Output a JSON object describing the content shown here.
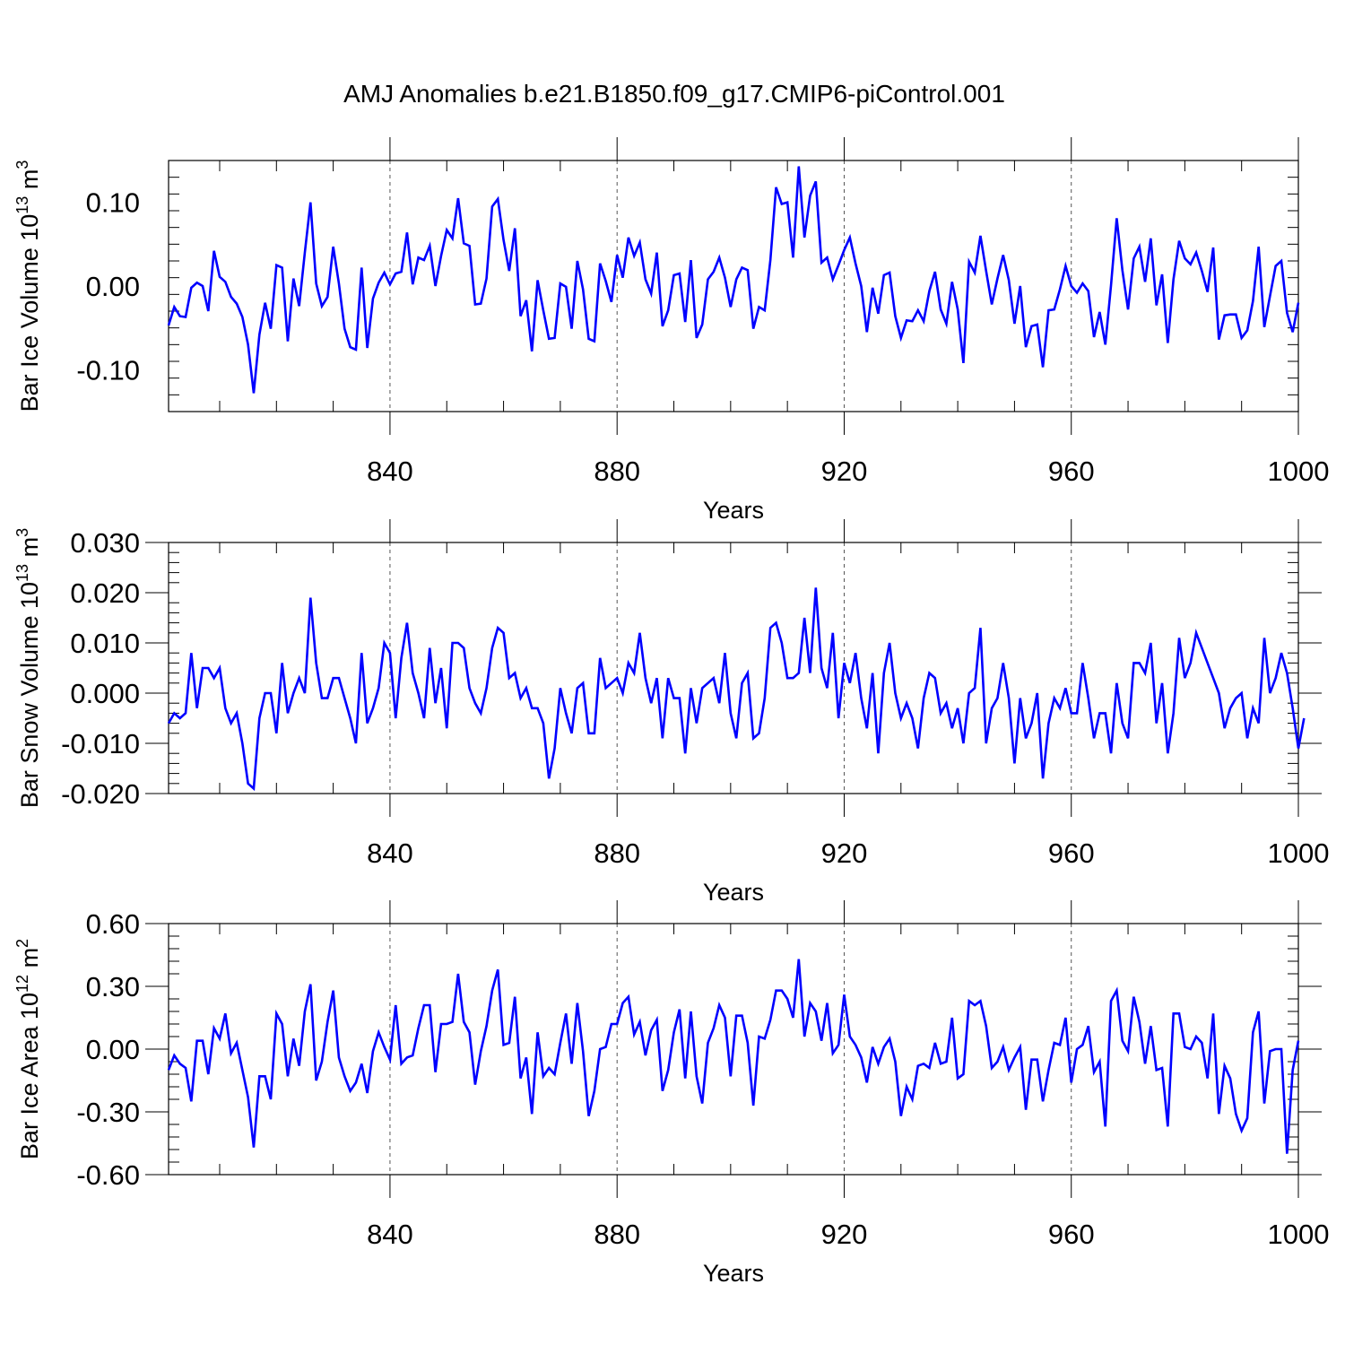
{
  "title": "AMJ Anomalies b.e21.B1850.f09_g17.CMIP6-piControl.001",
  "colors": {
    "line": "#0000ff",
    "axis": "#000000",
    "grid": "#555555"
  },
  "chart_data": [
    {
      "type": "line",
      "ylabel_main": "Bar Ice Volume 10",
      "ylabel_exp": "13",
      "ylabel_unit": " m",
      "ylabel_unit_exp": "3",
      "xlabel": "Years",
      "xlim": [
        801,
        1000
      ],
      "ylim": [
        -0.15,
        0.15
      ],
      "yticks": [
        -0.1,
        0.0,
        0.1
      ],
      "ytick_labels": [
        "-0.10",
        "0.00",
        "0.10"
      ],
      "xticks": [
        840,
        880,
        920,
        960,
        1000
      ],
      "xtick_labels": [
        "840",
        "880",
        "920",
        "960",
        "1000"
      ],
      "series": [
        {
          "name": "Bar Ice Volume",
          "start_year": 801,
          "values": [
            -0.047,
            -0.025,
            -0.036,
            -0.037,
            -0.002,
            0.004,
            0.0,
            -0.03,
            0.042,
            0.011,
            0.005,
            -0.013,
            -0.021,
            -0.037,
            -0.07,
            -0.128,
            -0.058,
            -0.02,
            -0.051,
            0.025,
            0.022,
            -0.066,
            0.009,
            -0.024,
            0.04,
            0.1,
            0.003,
            -0.024,
            -0.013,
            0.047,
            0.003,
            -0.051,
            -0.073,
            -0.076,
            0.022,
            -0.074,
            -0.015,
            0.004,
            0.016,
            0.002,
            0.015,
            0.017,
            0.064,
            0.002,
            0.034,
            0.031,
            0.048,
            0.0,
            0.036,
            0.067,
            0.057,
            0.105,
            0.051,
            0.048,
            -0.022,
            -0.021,
            0.009,
            0.095,
            0.104,
            0.055,
            0.018,
            0.069,
            -0.036,
            -0.017,
            -0.078,
            0.007,
            -0.029,
            -0.063,
            -0.062,
            0.003,
            -0.001,
            -0.051,
            0.03,
            -0.004,
            -0.063,
            -0.066,
            0.027,
            0.006,
            -0.019,
            0.037,
            0.01,
            0.058,
            0.036,
            0.052,
            0.008,
            -0.009,
            0.04,
            -0.048,
            -0.029,
            0.013,
            0.015,
            -0.043,
            0.031,
            -0.062,
            -0.046,
            0.008,
            0.017,
            0.034,
            0.01,
            -0.025,
            0.008,
            0.022,
            0.019,
            -0.051,
            -0.025,
            -0.029,
            0.031,
            0.118,
            0.098,
            0.1,
            0.034,
            0.143,
            0.058,
            0.108,
            0.125,
            0.028,
            0.034,
            0.008,
            0.025,
            0.043,
            0.058,
            0.027,
            0.0,
            -0.055,
            -0.002,
            -0.033,
            0.013,
            0.016,
            -0.036,
            -0.062,
            -0.041,
            -0.042,
            -0.029,
            -0.042,
            -0.006,
            0.017,
            -0.028,
            -0.045,
            0.005,
            -0.028,
            -0.092,
            0.029,
            0.016,
            0.06,
            0.018,
            -0.022,
            0.009,
            0.037,
            0.007,
            -0.045,
            0.0,
            -0.073,
            -0.048,
            -0.046,
            -0.097,
            -0.029,
            -0.028,
            -0.004,
            0.024,
            0.0,
            -0.008,
            0.003,
            -0.006,
            -0.061,
            -0.031,
            -0.07,
            0.001,
            0.081,
            0.019,
            -0.028,
            0.033,
            0.047,
            0.005,
            0.057,
            -0.023,
            0.014,
            -0.068,
            0.008,
            0.054,
            0.033,
            0.026,
            0.04,
            0.018,
            -0.007,
            0.046,
            -0.064,
            -0.035,
            -0.034,
            -0.034,
            -0.062,
            -0.053,
            -0.018,
            0.047,
            -0.049,
            -0.012,
            0.024,
            0.03,
            -0.032,
            -0.055,
            -0.02
          ]
        }
      ]
    },
    {
      "type": "line",
      "ylabel_main": "Bar Snow Volume 10",
      "ylabel_exp": "13",
      "ylabel_unit": " m",
      "ylabel_unit_exp": "3",
      "xlabel": "Years",
      "xlim": [
        801,
        1000
      ],
      "ylim": [
        -0.02,
        0.03
      ],
      "yticks": [
        -0.02,
        -0.01,
        0.0,
        0.01,
        0.02,
        0.03
      ],
      "ytick_labels": [
        "-0.020",
        "-0.010",
        "0.000",
        "0.010",
        "0.020",
        "0.030"
      ],
      "xticks": [
        840,
        880,
        920,
        960,
        1000
      ],
      "xtick_labels": [
        "840",
        "880",
        "920",
        "960",
        "1000"
      ],
      "series": [
        {
          "name": "Bar Snow Volume",
          "start_year": 801,
          "values": [
            -0.006,
            -0.004,
            -0.005,
            -0.004,
            0.008,
            -0.003,
            0.005,
            0.005,
            0.003,
            0.005,
            -0.003,
            -0.006,
            -0.004,
            -0.01,
            -0.018,
            -0.019,
            -0.005,
            0.0,
            0.0,
            -0.008,
            0.006,
            -0.004,
            0.0,
            0.003,
            0.0,
            0.019,
            0.006,
            -0.001,
            -0.001,
            0.003,
            0.003,
            -0.001,
            -0.005,
            -0.01,
            0.008,
            -0.006,
            -0.003,
            0.001,
            0.01,
            0.008,
            -0.005,
            0.007,
            0.014,
            0.004,
            0.0,
            -0.005,
            0.009,
            -0.002,
            0.005,
            -0.007,
            0.01,
            0.01,
            0.009,
            0.001,
            -0.002,
            -0.004,
            0.001,
            0.009,
            0.013,
            0.012,
            0.003,
            0.004,
            -0.001,
            0.001,
            -0.003,
            -0.003,
            -0.006,
            -0.017,
            -0.011,
            0.001,
            -0.004,
            -0.008,
            0.001,
            0.002,
            -0.008,
            -0.008,
            0.007,
            0.001,
            0.002,
            0.003,
            0.0,
            0.006,
            0.004,
            0.012,
            0.003,
            -0.002,
            0.003,
            -0.009,
            0.003,
            -0.001,
            -0.001,
            -0.012,
            0.001,
            -0.006,
            0.001,
            0.002,
            0.003,
            -0.002,
            0.008,
            -0.004,
            -0.009,
            0.002,
            0.004,
            -0.009,
            -0.008,
            -0.001,
            0.013,
            0.014,
            0.01,
            0.003,
            0.003,
            0.004,
            0.015,
            0.004,
            0.021,
            0.005,
            0.001,
            0.012,
            -0.005,
            0.006,
            0.002,
            0.008,
            -0.001,
            -0.007,
            0.004,
            -0.012,
            0.004,
            0.01,
            0.0,
            -0.005,
            -0.002,
            -0.005,
            -0.011,
            -0.001,
            0.004,
            0.003,
            -0.004,
            -0.002,
            -0.007,
            -0.003,
            -0.01,
            0.0,
            0.001,
            0.013,
            -0.01,
            -0.003,
            -0.001,
            0.006,
            -0.001,
            -0.014,
            -0.001,
            -0.009,
            -0.006,
            0.0,
            -0.017,
            -0.006,
            -0.001,
            -0.003,
            0.001,
            -0.004,
            -0.004,
            0.006,
            -0.001,
            -0.009,
            -0.004,
            -0.004,
            -0.012,
            0.002,
            -0.006,
            -0.009,
            0.006,
            0.006,
            0.004,
            0.01,
            -0.006,
            0.002,
            -0.012,
            -0.004,
            0.011,
            0.003,
            0.006,
            0.012,
            0.009,
            0.006,
            0.003,
            0.0,
            -0.007,
            -0.003,
            -0.001,
            0.0,
            -0.009,
            -0.003,
            -0.006,
            0.011,
            0.0,
            0.003,
            0.008,
            0.004,
            -0.003,
            -0.011,
            -0.005
          ]
        }
      ]
    },
    {
      "type": "line",
      "ylabel_main": "Bar Ice Area 10",
      "ylabel_exp": "12",
      "ylabel_unit": " m",
      "ylabel_unit_exp": "2",
      "xlabel": "Years",
      "xlim": [
        801,
        1000
      ],
      "ylim": [
        -0.6,
        0.6
      ],
      "yticks": [
        -0.6,
        -0.3,
        0.0,
        0.3,
        0.6
      ],
      "ytick_labels": [
        "-0.60",
        "-0.30",
        "0.00",
        "0.30",
        "0.60"
      ],
      "xticks": [
        840,
        880,
        920,
        960,
        1000
      ],
      "xtick_labels": [
        "840",
        "880",
        "920",
        "960",
        "1000"
      ],
      "series": [
        {
          "name": "Bar Ice Area",
          "start_year": 801,
          "values": [
            -0.1,
            -0.03,
            -0.07,
            -0.09,
            -0.25,
            0.04,
            0.04,
            -0.12,
            0.1,
            0.05,
            0.17,
            -0.02,
            0.03,
            -0.1,
            -0.23,
            -0.47,
            -0.13,
            -0.13,
            -0.24,
            0.17,
            0.12,
            -0.13,
            0.05,
            -0.08,
            0.18,
            0.31,
            -0.15,
            -0.06,
            0.13,
            0.28,
            -0.04,
            -0.13,
            -0.2,
            -0.16,
            -0.07,
            -0.21,
            -0.01,
            0.08,
            0.01,
            -0.05,
            0.21,
            -0.07,
            -0.04,
            -0.03,
            0.1,
            0.21,
            0.21,
            -0.11,
            0.12,
            0.12,
            0.13,
            0.36,
            0.13,
            0.08,
            -0.17,
            -0.01,
            0.11,
            0.28,
            0.38,
            0.02,
            0.03,
            0.25,
            -0.14,
            -0.04,
            -0.31,
            0.08,
            -0.13,
            -0.09,
            -0.12,
            0.03,
            0.17,
            -0.07,
            0.22,
            -0.01,
            -0.32,
            -0.2,
            0.0,
            0.01,
            0.12,
            0.12,
            0.22,
            0.25,
            0.07,
            0.13,
            -0.03,
            0.09,
            0.14,
            -0.2,
            -0.1,
            0.08,
            0.19,
            -0.14,
            0.18,
            -0.13,
            -0.26,
            0.03,
            0.1,
            0.21,
            0.15,
            -0.13,
            0.16,
            0.16,
            0.03,
            -0.27,
            0.06,
            0.05,
            0.14,
            0.28,
            0.28,
            0.24,
            0.15,
            0.43,
            0.06,
            0.22,
            0.18,
            0.04,
            0.22,
            -0.02,
            0.02,
            0.26,
            0.06,
            0.02,
            -0.04,
            -0.16,
            0.01,
            -0.07,
            0.01,
            0.05,
            -0.06,
            -0.32,
            -0.18,
            -0.24,
            -0.08,
            -0.07,
            -0.09,
            0.03,
            -0.07,
            -0.06,
            0.15,
            -0.14,
            -0.12,
            0.23,
            0.21,
            0.23,
            0.11,
            -0.09,
            -0.06,
            0.01,
            -0.1,
            -0.04,
            0.01,
            -0.29,
            -0.05,
            -0.05,
            -0.25,
            -0.1,
            0.03,
            0.02,
            0.15,
            -0.16,
            0.0,
            0.02,
            0.11,
            -0.11,
            -0.06,
            -0.37,
            0.23,
            0.28,
            0.04,
            -0.01,
            0.25,
            0.13,
            -0.07,
            0.11,
            -0.1,
            -0.09,
            -0.37,
            0.17,
            0.17,
            0.01,
            0.0,
            0.06,
            0.03,
            -0.14,
            0.17,
            -0.31,
            -0.08,
            -0.14,
            -0.31,
            -0.39,
            -0.33,
            0.08,
            0.18,
            -0.26,
            -0.01,
            0.0,
            0.0,
            -0.5,
            -0.1,
            0.04
          ]
        }
      ]
    }
  ]
}
